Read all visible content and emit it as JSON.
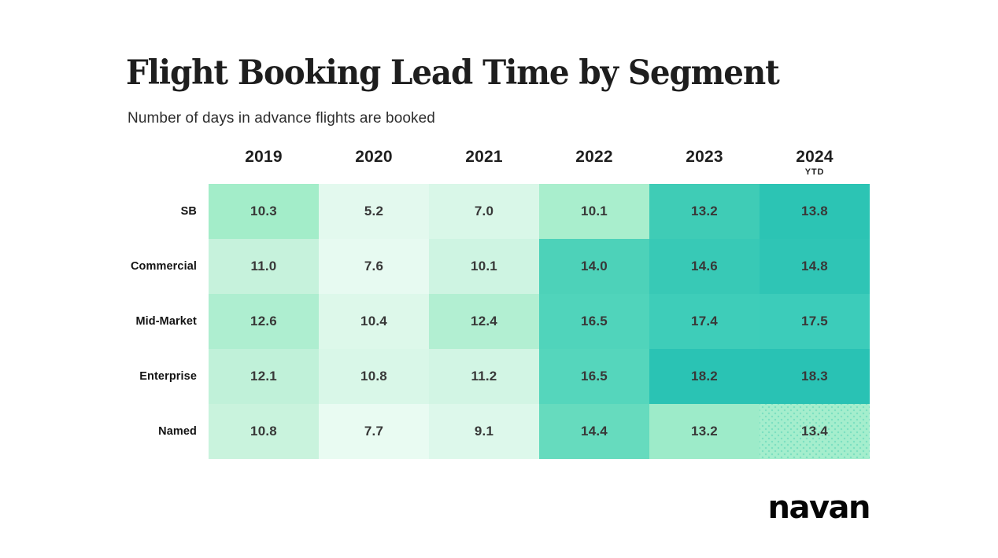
{
  "title": "Flight Booking Lead Time by Segment",
  "subtitle": "Number of days in advance flights are booked",
  "brand": {
    "logo_text": "navan",
    "logo_color": "#050505"
  },
  "chart_data": {
    "type": "heatmap",
    "title": "Flight Booking Lead Time by Segment",
    "subtitle": "Number of days in advance flights are booked",
    "unit": "days booked in advance",
    "columns": [
      "2019",
      "2020",
      "2021",
      "2022",
      "2023",
      "2024"
    ],
    "column_note": {
      "column": "2024",
      "label": "YTD"
    },
    "rows": [
      "SB",
      "Commercial",
      "Mid-Market",
      "Enterprise",
      "Named"
    ],
    "values": [
      [
        10.3,
        5.2,
        7.0,
        10.1,
        13.2,
        13.8
      ],
      [
        11.0,
        7.6,
        10.1,
        14.0,
        14.6,
        14.8
      ],
      [
        12.6,
        10.4,
        12.4,
        16.5,
        17.4,
        17.5
      ],
      [
        12.1,
        10.8,
        11.2,
        16.5,
        18.2,
        18.3
      ],
      [
        10.8,
        7.7,
        9.1,
        14.4,
        13.2,
        13.4
      ]
    ],
    "value_format": "one_decimal",
    "cell_colors": [
      [
        "#a3edc9",
        "#e3f9ee",
        "#d9f7e8",
        "#a9eecd",
        "#3fccb6",
        "#2cc4b4"
      ],
      [
        "#c6f2dc",
        "#e7faf1",
        "#cef4e2",
        "#4dd2b9",
        "#38c9b6",
        "#2fc5b5"
      ],
      [
        "#aeeed0",
        "#ddf8ea",
        "#b2efd2",
        "#50d4bb",
        "#3ecdb9",
        "#3cccba"
      ],
      [
        "#c0f1d9",
        "#d9f7e8",
        "#d2f5e4",
        "#55d6bc",
        "#2ac3b4",
        "#29c2b4"
      ],
      [
        "#c9f3dd",
        "#e9fbf2",
        "#ddf8eb",
        "#66dbbe",
        "#9debc9",
        "#a5eecd"
      ]
    ],
    "pattern_cell": {
      "row": "Named",
      "column": "2024",
      "row_index": 4,
      "col_index": 5,
      "pattern": "dots",
      "dot_color": "#7de0c1"
    },
    "scale": {
      "low_color": "#e9fbf2",
      "high_color": "#29c2b4",
      "normalization": "per_row",
      "min_value": 5.2,
      "max_value": 18.3
    },
    "layout_hints": {
      "legend": "none",
      "grid_lines": "none",
      "row_label_position": "left",
      "column_label_position": "top"
    }
  }
}
